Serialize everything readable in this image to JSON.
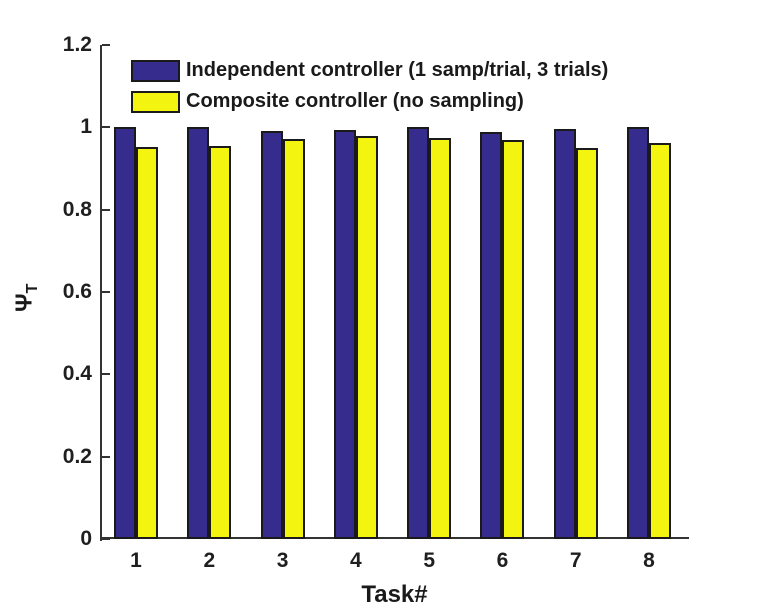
{
  "figure": {
    "background": "#ffffff",
    "axis_color": "#333333",
    "text_color": "#1a1a1a"
  },
  "chart_data": {
    "type": "bar",
    "title": "",
    "xlabel": "Task#",
    "ylabel": "Ψ_T",
    "ylabel_base": "Ψ",
    "ylabel_sub": "T",
    "categories": [
      "1",
      "2",
      "3",
      "4",
      "5",
      "6",
      "7",
      "8"
    ],
    "series": [
      {
        "name": "Independent controller (1 samp/trial, 3 trials)",
        "color": "#352C8E",
        "values": [
          1.0,
          1.0,
          0.99,
          0.993,
          1.0,
          0.988,
          0.995,
          1.0
        ]
      },
      {
        "name": "Composite controller (no sampling)",
        "color": "#F4F411",
        "values": [
          0.952,
          0.955,
          0.972,
          0.98,
          0.973,
          0.97,
          0.951,
          0.961
        ]
      }
    ],
    "bar_edge_color": "#1a1a1a",
    "ylim": [
      0,
      1.2
    ],
    "yticks": [
      0,
      0.2,
      0.4,
      0.6,
      0.8,
      1,
      1.2
    ],
    "ytick_labels": [
      "0",
      "0.2",
      "0.4",
      "0.6",
      "0.8",
      "1",
      "1.2"
    ],
    "grid": false,
    "legend_position": "top-left-inside"
  }
}
